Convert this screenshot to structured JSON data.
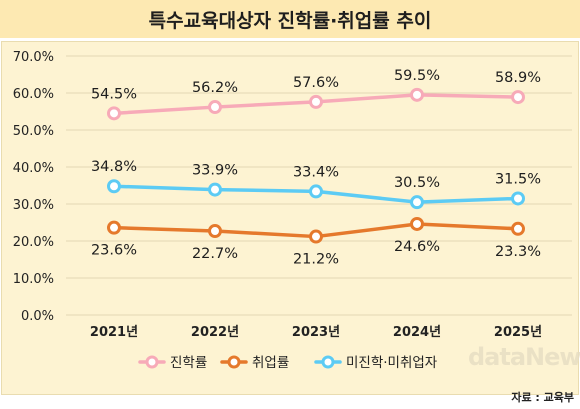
{
  "header": {
    "title": "특수교육대상자 진학률·취업률 추이"
  },
  "source": "자료 : 교육부",
  "watermark": "dataNews",
  "chart_data": {
    "type": "line",
    "title": "특수교육대상자 진학률·취업률 추이",
    "categories": [
      "2021년",
      "2022년",
      "2023년",
      "2024년",
      "2025년"
    ],
    "ylim": [
      0,
      70
    ],
    "yticks": [
      "0.0%",
      "10.0%",
      "20.0%",
      "30.0%",
      "40.0%",
      "50.0%",
      "60.0%",
      "70.0%"
    ],
    "grid": true,
    "legend_position": "bottom",
    "series": [
      {
        "name": "진학률",
        "color": "#f7aab8",
        "values": [
          54.5,
          56.2,
          57.6,
          59.5,
          58.9
        ],
        "labels": [
          "54.5%",
          "56.2%",
          "57.6%",
          "59.5%",
          "58.9%"
        ],
        "label_pos": "above"
      },
      {
        "name": "취업률",
        "color": "#e5792c",
        "values": [
          23.6,
          22.7,
          21.2,
          24.6,
          23.3
        ],
        "labels": [
          "23.6%",
          "22.7%",
          "21.2%",
          "24.6%",
          "23.3%"
        ],
        "label_pos": "below"
      },
      {
        "name": "미진학·미취업자",
        "color": "#5ccbf4",
        "values": [
          34.8,
          33.9,
          33.4,
          30.5,
          31.5
        ],
        "labels": [
          "34.8%",
          "33.9%",
          "33.4%",
          "30.5%",
          "31.5%"
        ],
        "label_pos": "above"
      }
    ]
  }
}
